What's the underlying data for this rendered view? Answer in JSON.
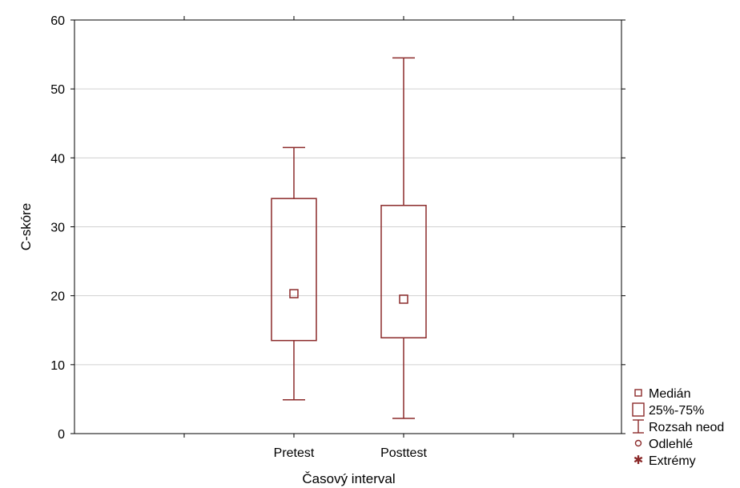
{
  "chart_data": {
    "type": "box",
    "xlabel": "Časový interval",
    "ylabel": "C-skóre",
    "ylim": [
      0,
      60
    ],
    "yticks": [
      0,
      10,
      20,
      30,
      40,
      50,
      60
    ],
    "categories": [
      "Pretest",
      "Posttest"
    ],
    "boxes": [
      {
        "category": "Pretest",
        "median": 20.3,
        "q1": 13.5,
        "q3": 34.1,
        "min": 4.9,
        "max": 41.5
      },
      {
        "category": "Posttest",
        "median": 19.5,
        "q1": 13.9,
        "q3": 33.1,
        "min": 2.2,
        "max": 54.5
      }
    ],
    "grid": {
      "horizontal": true
    },
    "legend": {
      "placement": "right-bottom",
      "items": [
        {
          "symbol": "small-square",
          "label": "Medián"
        },
        {
          "symbol": "box",
          "label": "25%-75%"
        },
        {
          "symbol": "range",
          "label": "Rozsah neod"
        },
        {
          "symbol": "circle",
          "label": "Odlehlé"
        },
        {
          "symbol": "asterisk",
          "label": "Extrémy"
        }
      ]
    },
    "colors": {
      "box": "#8b2a2a",
      "grid": "#d0d0d0",
      "axis": "#000000"
    }
  }
}
